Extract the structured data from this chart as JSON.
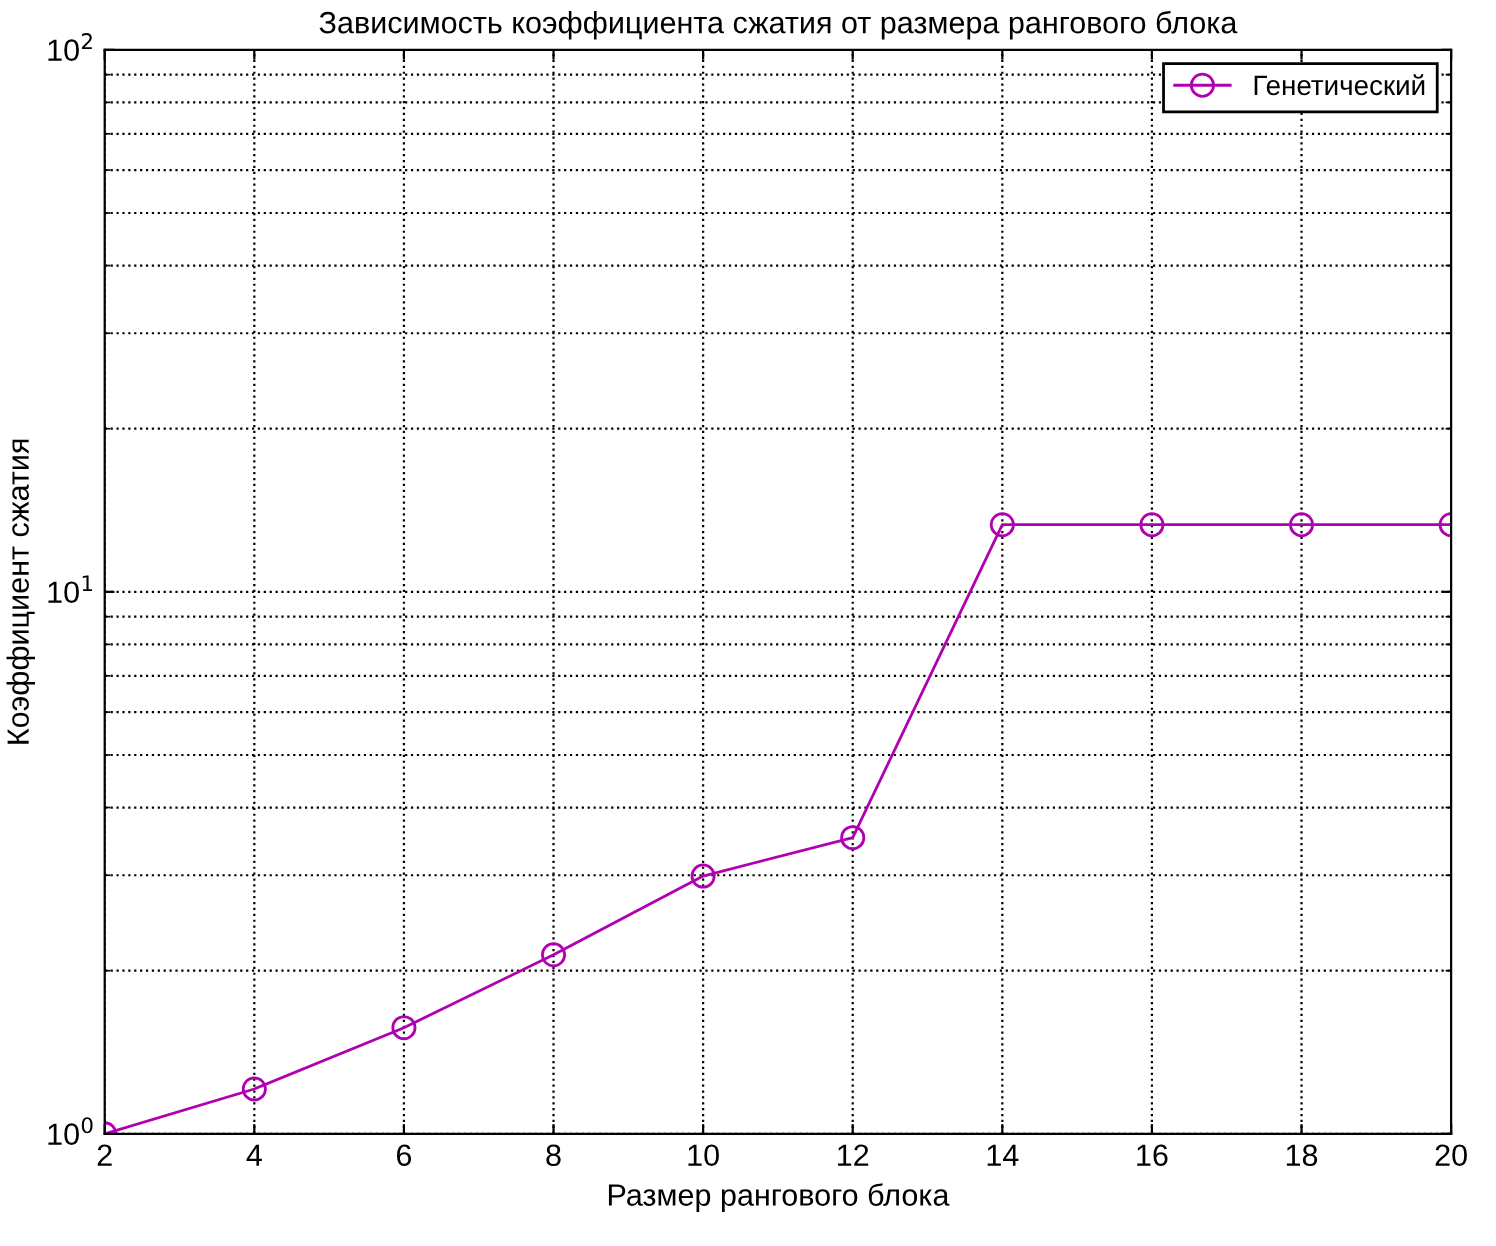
{
  "chart_data": {
    "type": "line",
    "title": "Зависимость коэффициента сжатия от размера рангового блока",
    "xlabel": "Размер рангового блока",
    "ylabel": "Коэффициент сжатия",
    "x": [
      2,
      4,
      6,
      8,
      10,
      12,
      14,
      16,
      18,
      20
    ],
    "series": [
      {
        "name": "Генетический",
        "color": "#b000b0",
        "values": [
          1.0,
          1.21,
          1.57,
          2.14,
          2.99,
          3.52,
          13.3,
          13.3,
          13.3,
          13.3
        ]
      }
    ],
    "xlim": [
      2,
      20
    ],
    "xticks": [
      2,
      4,
      6,
      8,
      10,
      12,
      14,
      16,
      18,
      20
    ],
    "ylim": [
      1,
      100
    ],
    "yticks": [
      {
        "value": 1,
        "label": "10$^{0}$"
      },
      {
        "value": 10,
        "label": "10$^{1}$"
      },
      {
        "value": 100,
        "label": "10$^{2}$"
      }
    ],
    "log": "y",
    "grid": true,
    "legend": "top right",
    "marker": "circle",
    "line_style": "solid"
  }
}
